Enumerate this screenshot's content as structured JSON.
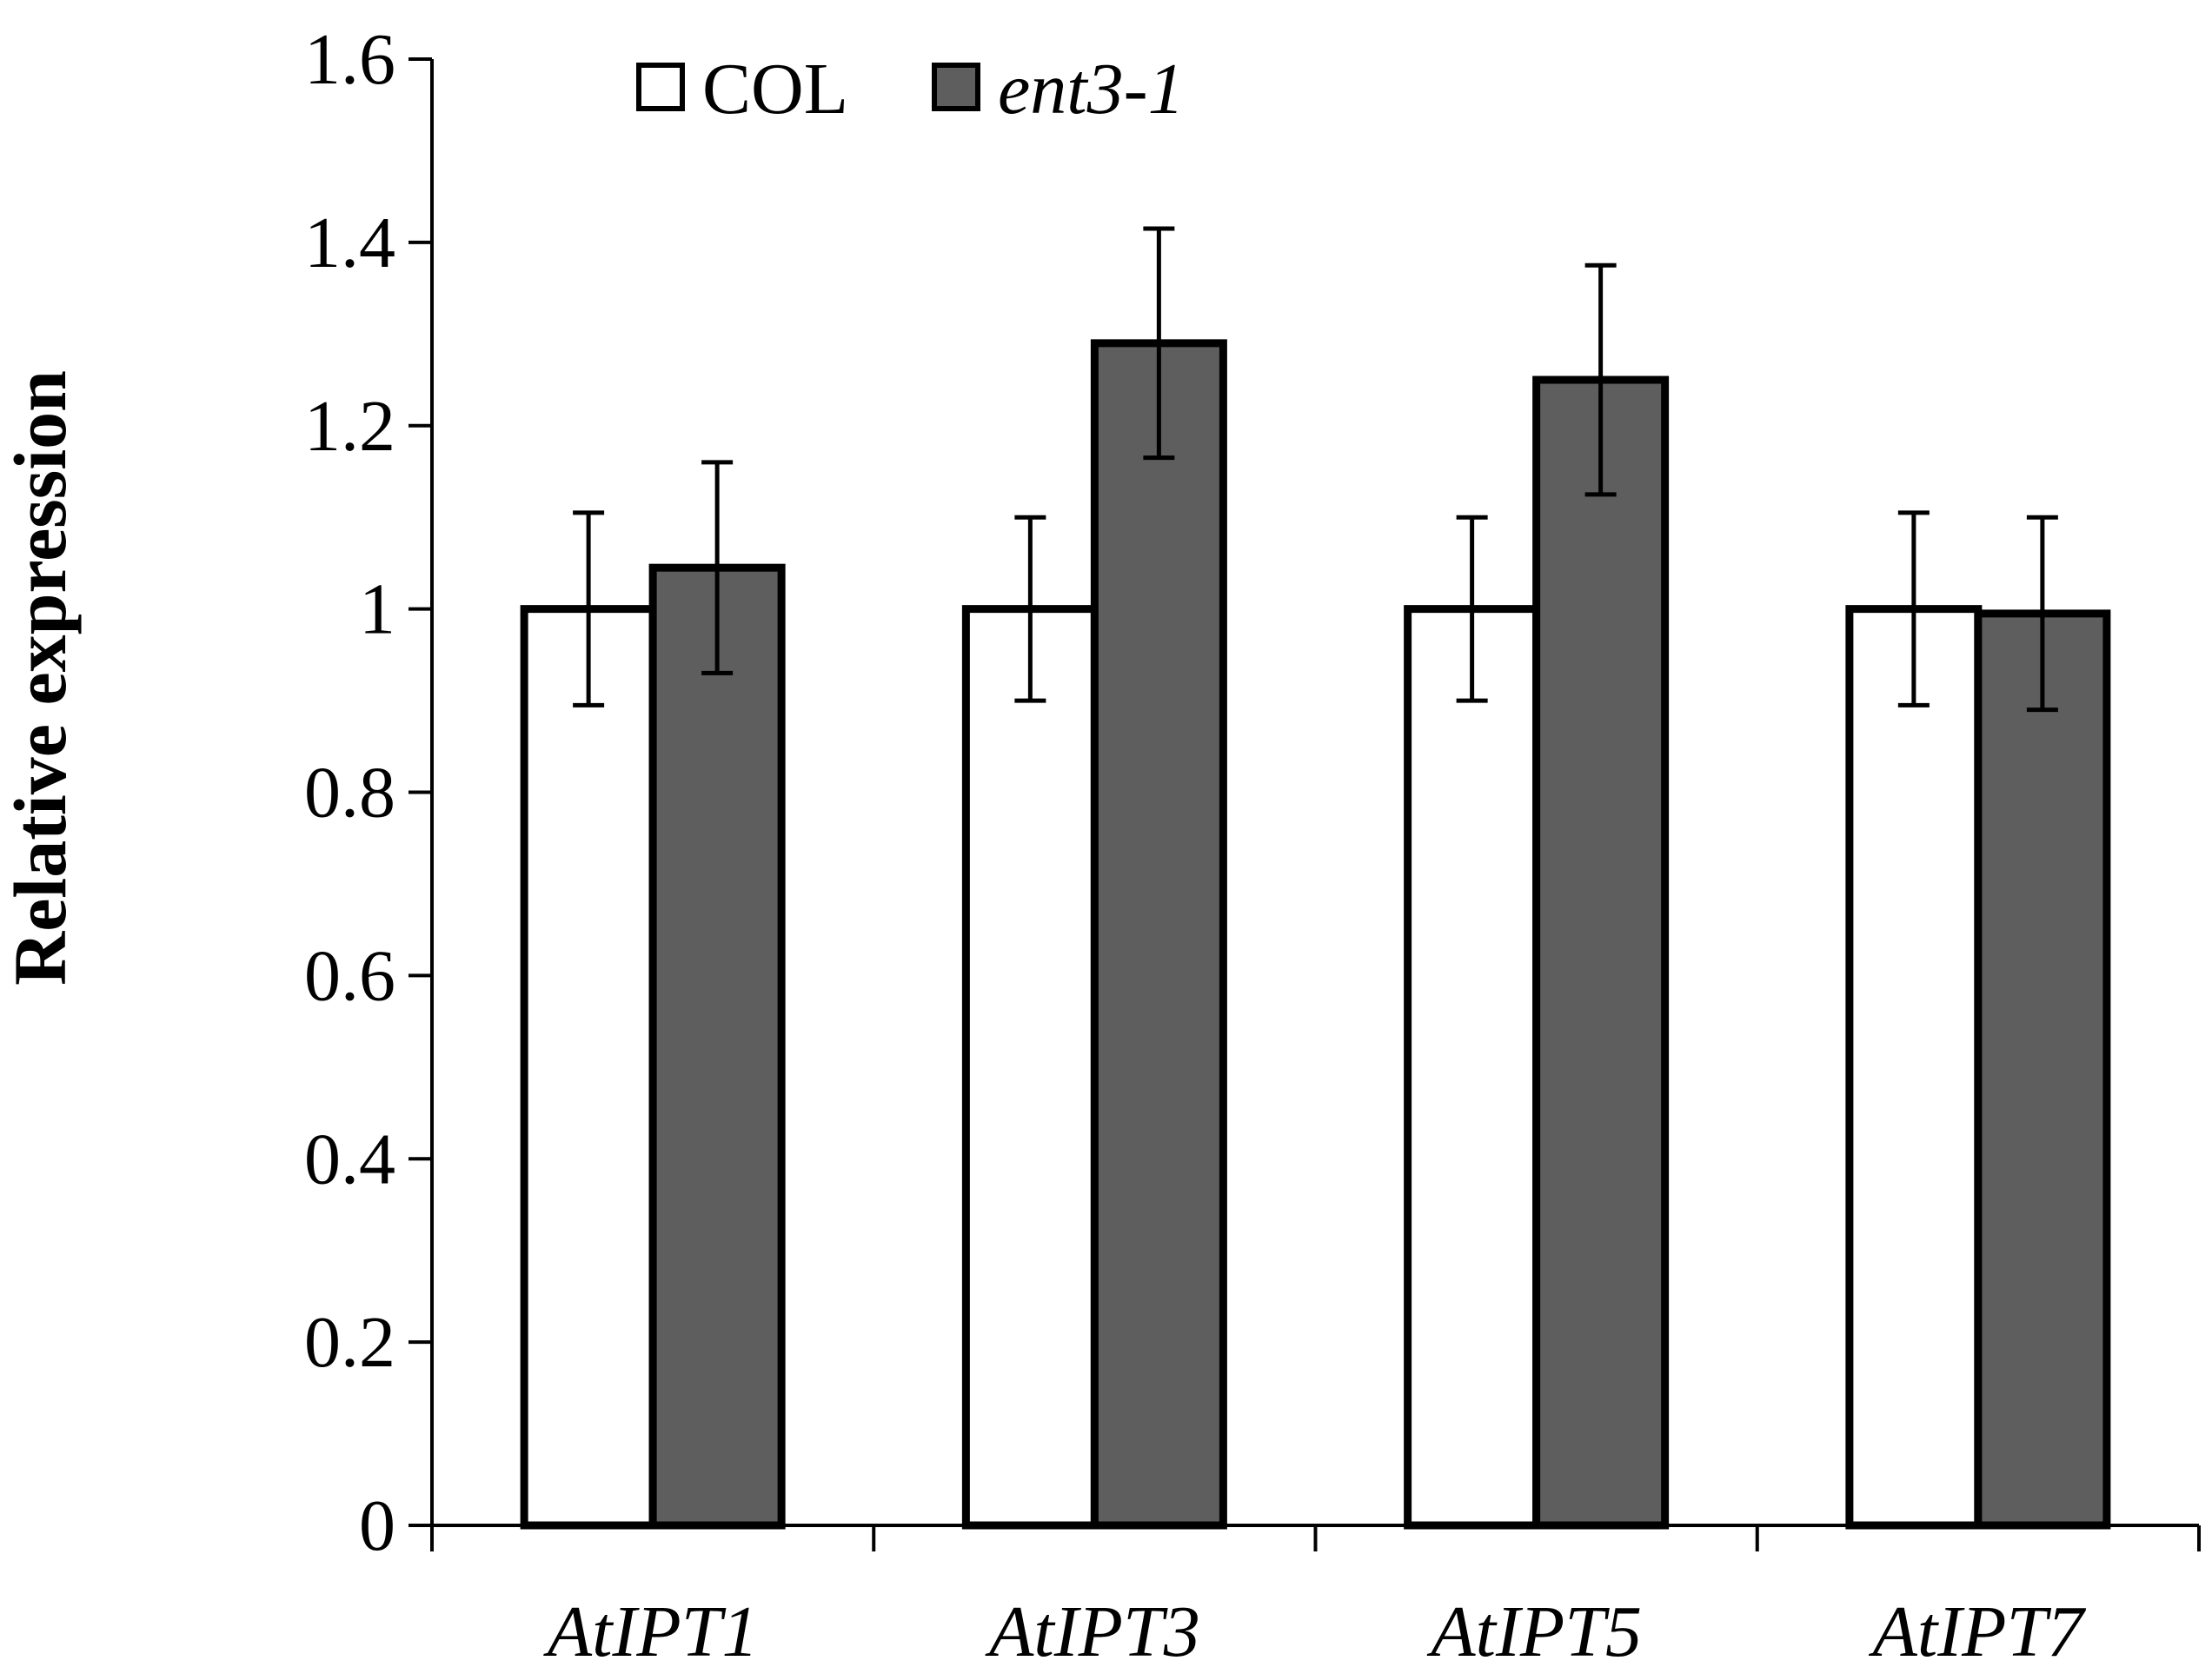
{
  "chart_data": {
    "type": "bar",
    "title": "",
    "xlabel": "",
    "ylabel": "Relative expression",
    "ylim": [
      0,
      1.6
    ],
    "yticks": [
      "0",
      "0.2",
      "0.4",
      "0.6",
      "0.8",
      "1",
      "1.2",
      "1.4",
      "1.6"
    ],
    "categories": [
      "AtIPT1",
      "AtIPT3",
      "AtIPT5",
      "AtIPT7"
    ],
    "series": [
      {
        "name": "COL",
        "italic": false,
        "color": "#ffffff",
        "values": [
          1.0,
          1.0,
          1.0,
          1.0
        ],
        "errors": [
          0.105,
          0.1,
          0.1,
          0.105
        ]
      },
      {
        "name": "ent3-1",
        "italic": true,
        "color": "#5e5e5e",
        "values": [
          1.045,
          1.29,
          1.25,
          0.995
        ],
        "errors": [
          0.115,
          0.125,
          0.125,
          0.105
        ]
      }
    ],
    "legend_position": "top-left",
    "grid": false
  }
}
